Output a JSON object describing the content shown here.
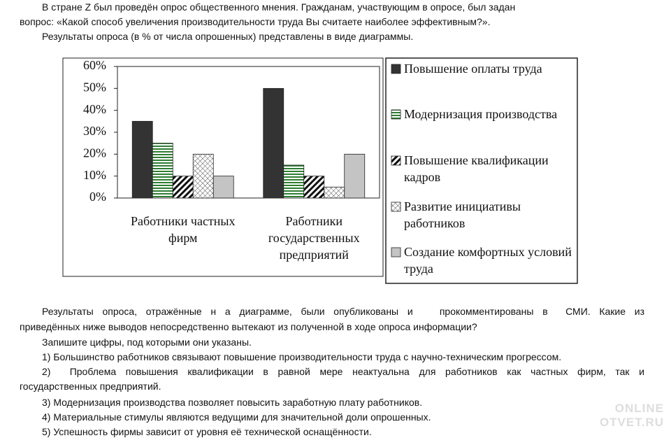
{
  "intro_lines": [
    "В стране Z был проведён опрос общественного мнения. Гражданам, участвующим в опросе, был задан",
    "вопрос: «Какой способ увеличения производительности труда Вы считаете наиболее эффективным?».",
    "Результаты опроса (в % от числа опрошенных) представлены в виде диаграммы."
  ],
  "chart_data": {
    "type": "bar",
    "categories": [
      "Работники частных фирм",
      "Работники государственных предприятий"
    ],
    "series": [
      {
        "name": "Повышение оплаты труда",
        "color": "#333333",
        "pattern": "solid",
        "values": [
          35,
          50
        ]
      },
      {
        "name": "Модернизация производства",
        "color": "#2e7d32",
        "pattern": "hlines",
        "values": [
          25,
          15
        ]
      },
      {
        "name": "Повышение квалификации кадров",
        "color": "#111111",
        "pattern": "diag",
        "values": [
          10,
          10
        ]
      },
      {
        "name": "Развитие инициативы работников",
        "color": "#555555",
        "pattern": "cross",
        "values": [
          20,
          5
        ]
      },
      {
        "name": "Создание комфортных условий труда",
        "color": "#c4c4c4",
        "pattern": "solid",
        "values": [
          10,
          20
        ]
      }
    ],
    "ylim": [
      0,
      60
    ],
    "yticks": [
      {
        "value": 0,
        "label": "0%"
      },
      {
        "value": 10,
        "label": "10%"
      },
      {
        "value": 20,
        "label": "20%"
      },
      {
        "value": 30,
        "label": "30%"
      },
      {
        "value": 40,
        "label": "40%"
      },
      {
        "value": 50,
        "label": "50%"
      },
      {
        "value": 60,
        "label": "60%"
      }
    ],
    "grid": false,
    "legend": "right"
  },
  "question_lines": [
    "Результаты опроса, отражённые н а диаграмме, были опубликованы и   прокомментированы в  СМИ. Какие из",
    "приведённых ниже выводов непосредственно вытекают из полученной в ходе опроса информации?",
    "Запишите цифры, под которыми они указаны.",
    "1) Большинство работников связывают повышение производительности труда с научно-техническим прогрессом.",
    "2)  Проблема повышения квалификации в равной мере неактуальна для работников как частных фирм, так и",
    "государственных предприятий.",
    "3) Модернизация производства позволяет повысить заработную плату работников.",
    "4) Материальные стимулы являются ведущими для значительной доли опрошенных.",
    "5) Успешность фирмы зависит от уровня её технической оснащённости."
  ],
  "watermark": {
    "line1": "ONLINE",
    "line2": "OTVET.RU"
  }
}
